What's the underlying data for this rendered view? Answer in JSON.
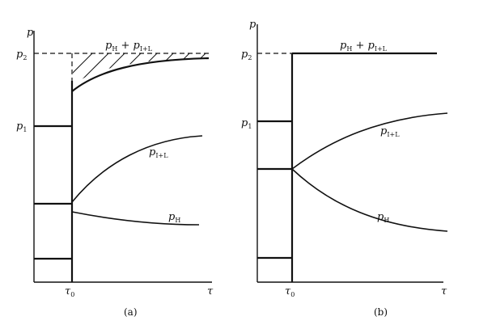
{
  "panel_a": {
    "caption": "(a)",
    "axis_y": "p",
    "axis_x": "τ",
    "tick_t0": "τ",
    "tick_t0_sub": "0",
    "tick_p1": "p",
    "tick_p1_sub": "1",
    "tick_p2": "p",
    "tick_p2_sub": "2",
    "label_sum": "p",
    "label_sum_sub1": "H",
    "label_sum_plus": " + ",
    "label_sum_p": "p",
    "label_sum_sub2": "I+L",
    "label_il": "p",
    "label_il_sub": "I+L",
    "label_h": "p",
    "label_h_sub": "H"
  },
  "panel_b": {
    "caption": "(b)",
    "axis_y": "p",
    "axis_x": "τ",
    "tick_t0": "τ",
    "tick_t0_sub": "0",
    "tick_p1": "p",
    "tick_p1_sub": "1",
    "tick_p2": "p",
    "tick_p2_sub": "2",
    "label_sum": "p",
    "label_sum_sub1": "H",
    "label_sum_plus": " + ",
    "label_sum_p": "p",
    "label_sum_sub2": "I+L",
    "label_il": "p",
    "label_il_sub": "I+L",
    "label_h": "p",
    "label_h_sub": "H"
  }
}
